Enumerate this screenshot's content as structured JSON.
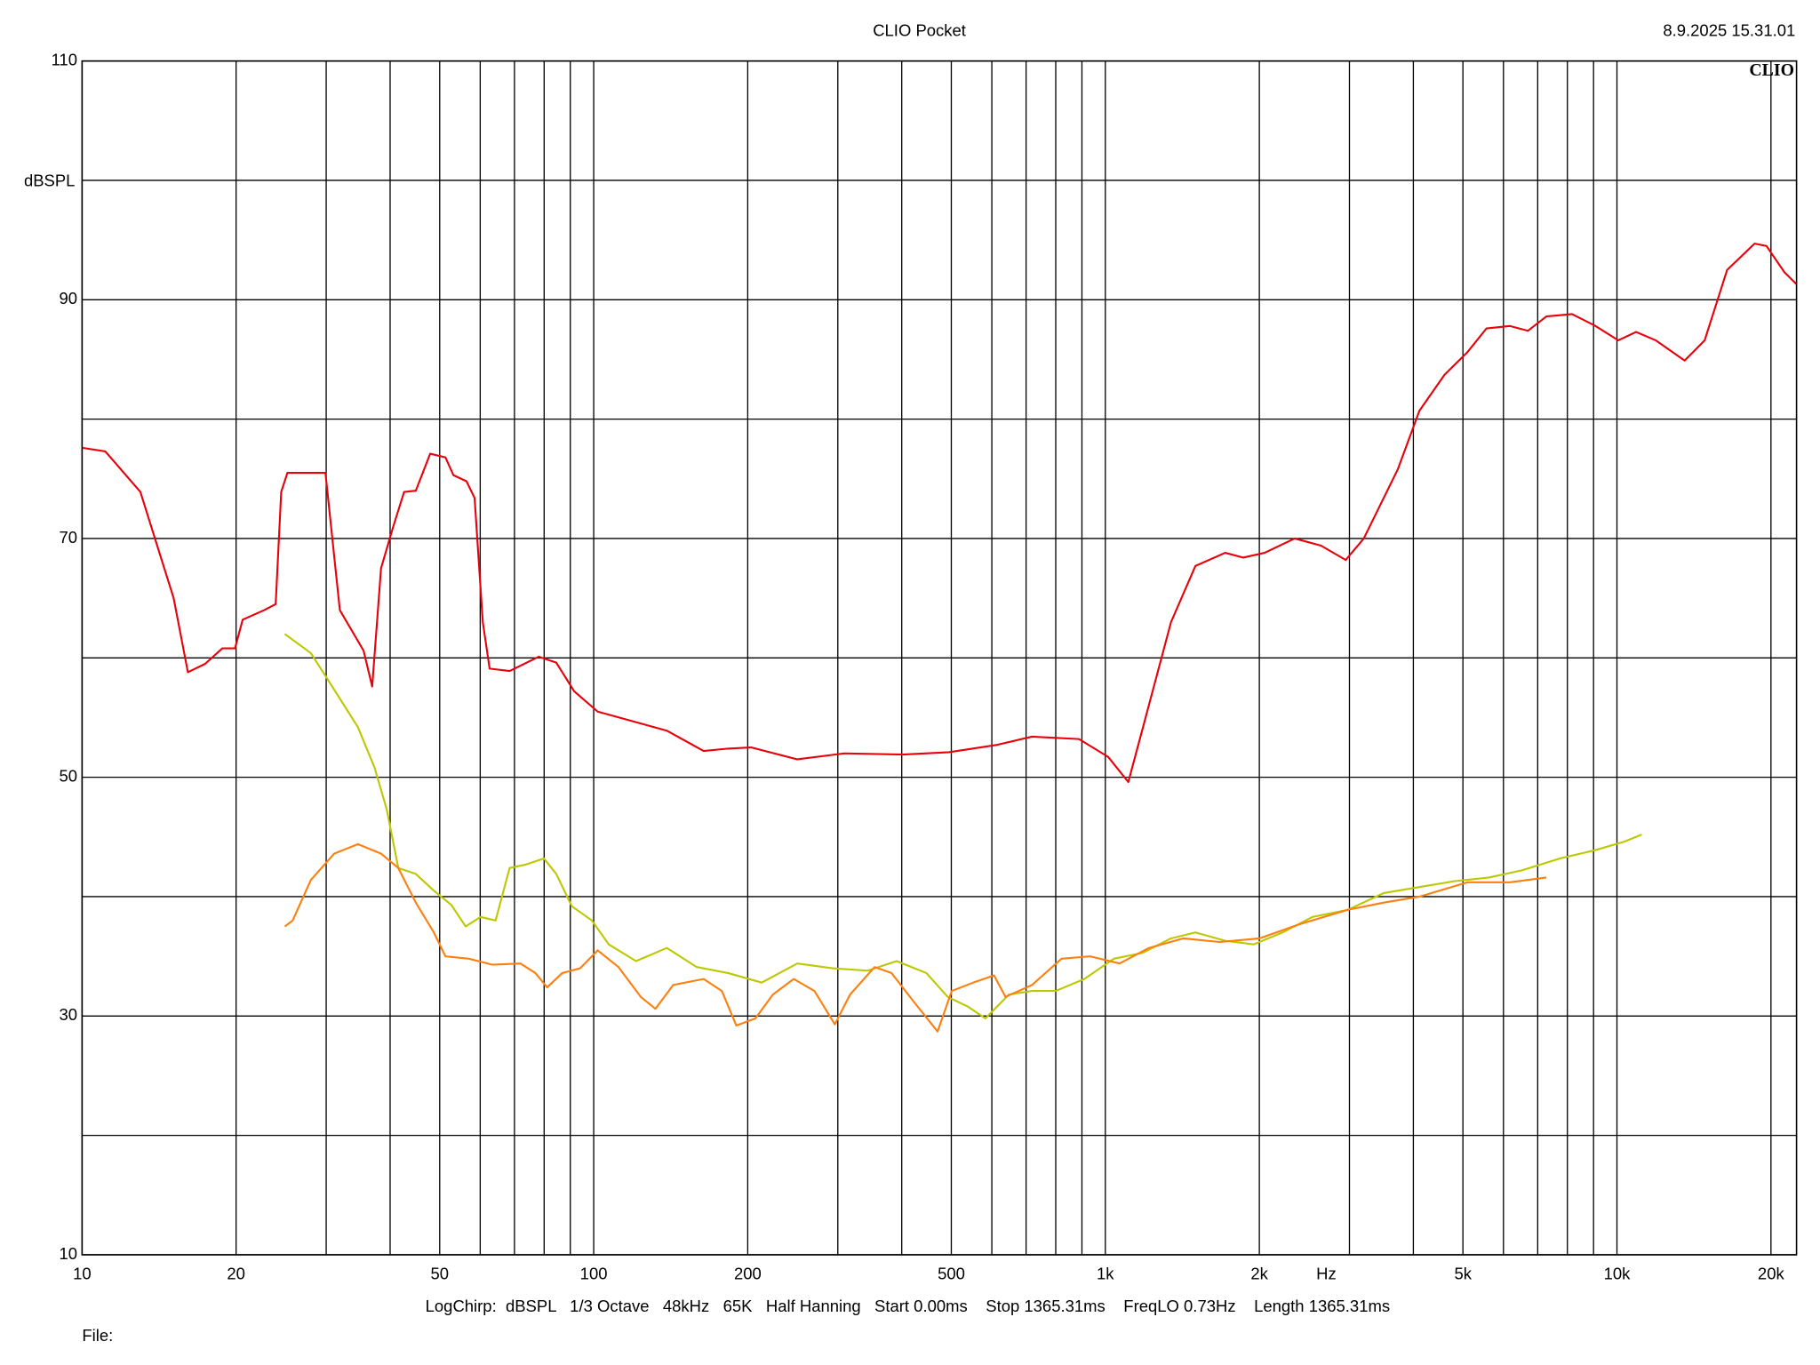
{
  "chart_data": {
    "type": "line",
    "title": "CLIO Pocket",
    "timestamp": "8.9.2025 15.31.01",
    "logo": "CLIO",
    "y_label": "dBSPL",
    "x_label": "Hz",
    "footer": "LogChirp:  dBSPL   1/3 Octave   48kHz   65K   Half Hanning   Start 0.00ms    Stop 1365.31ms    FreqLO 0.73Hz    Length 1365.31ms",
    "file_label": "File:",
    "x_log": true,
    "grid": true,
    "xlim": [
      10,
      22440
    ],
    "ylim": [
      10,
      110
    ],
    "xticks": [
      10,
      20,
      50,
      100,
      200,
      500,
      {
        "value": 1000,
        "label": "1k"
      },
      {
        "value": 2000,
        "label": "2k"
      },
      {
        "value": 5000,
        "label": "5k"
      },
      {
        "value": 10000,
        "label": "10k"
      },
      {
        "value": 20000,
        "label": "20k"
      }
    ],
    "x_minor_ticks": [
      30,
      40,
      60,
      70,
      80,
      90,
      300,
      400,
      600,
      700,
      800,
      900,
      3000,
      4000,
      6000,
      7000,
      8000,
      9000
    ],
    "yticks": [
      10,
      30,
      50,
      70,
      90,
      110
    ],
    "y_minor_ticks": [
      20,
      40,
      60,
      80,
      100
    ],
    "series": [
      {
        "color": "#e8000b",
        "x": [
          10,
          11.1,
          13.0,
          15.1,
          16.1,
          17.4,
          18.8,
          19.9,
          20.6,
          22.7,
          23.9,
          24.5,
          25.2,
          29.9,
          31.9,
          35.5,
          36.9,
          38.4,
          40.5,
          42.6,
          44.9,
          47.9,
          51.3,
          53.2,
          56.4,
          58.5,
          60.7,
          62.6,
          68.5,
          78.1,
          84.5,
          91.6,
          101.8,
          119,
          139,
          164,
          183,
          203,
          250,
          309,
          402,
          495,
          612,
          719,
          888,
          1013,
          1109,
          1185,
          1344,
          1500,
          1715,
          1860,
          2048,
          2345,
          2640,
          2950,
          3200,
          3730,
          4110,
          4600,
          5100,
          5560,
          6180,
          6700,
          7280,
          8170,
          9080,
          10060,
          10900,
          11910,
          13560,
          14840,
          16420,
          18580,
          19600,
          21250,
          22440
        ],
        "values": [
          77.6,
          77.3,
          73.9,
          65.0,
          58.8,
          59.5,
          60.8,
          60.8,
          63.2,
          64.0,
          64.5,
          73.9,
          75.5,
          75.5,
          64.0,
          60.6,
          57.6,
          67.5,
          70.9,
          73.9,
          74.0,
          77.1,
          76.8,
          75.3,
          74.8,
          73.4,
          63.0,
          59.1,
          58.9,
          60.1,
          59.6,
          57.2,
          55.5,
          54.7,
          53.9,
          52.2,
          52.4,
          52.5,
          51.5,
          52.0,
          51.9,
          52.1,
          52.7,
          53.4,
          53.2,
          51.7,
          49.6,
          54.2,
          63.0,
          67.7,
          68.8,
          68.4,
          68.8,
          70.0,
          69.4,
          68.2,
          70.0,
          75.8,
          80.7,
          83.7,
          85.6,
          87.6,
          87.8,
          87.4,
          88.6,
          88.8,
          87.8,
          86.6,
          87.3,
          86.6,
          84.9,
          86.6,
          92.5,
          94.7,
          94.5,
          92.3,
          91.3
        ]
      },
      {
        "color": "#bcc800",
        "x": [
          24.9,
          28.0,
          30.3,
          34.6,
          37.3,
          39.4,
          41.5,
          44.9,
          48.7,
          52.7,
          56.2,
          60.1,
          64.3,
          68.5,
          73.9,
          79.9,
          84.5,
          90.6,
          99.2,
          107,
          121,
          139,
          159,
          183,
          213,
          250,
          293,
          343,
          391,
          447,
          492,
          538,
          583,
          648,
          719,
          800,
          910,
          1039,
          1185,
          1344,
          1500,
          1715,
          1950,
          2220,
          2540,
          2980,
          3500,
          4110,
          4820,
          5620,
          6520,
          7740,
          9080,
          10330,
          11180
        ],
        "values": [
          62.0,
          60.4,
          58.1,
          54.2,
          50.8,
          47.3,
          42.4,
          41.9,
          40.5,
          39.3,
          37.5,
          38.3,
          38.0,
          42.4,
          42.7,
          43.2,
          41.9,
          39.2,
          38.0,
          36.0,
          34.6,
          35.7,
          34.1,
          33.6,
          32.8,
          34.4,
          34.0,
          33.8,
          34.6,
          33.6,
          31.6,
          30.8,
          29.8,
          31.8,
          32.1,
          32.1,
          33.1,
          34.8,
          35.3,
          36.5,
          37.0,
          36.3,
          36.0,
          37.0,
          38.3,
          38.9,
          40.3,
          40.8,
          41.3,
          41.6,
          42.2,
          43.2,
          43.9,
          44.6,
          45.2
        ]
      },
      {
        "color": "#ff7f0e",
        "x": [
          24.9,
          25.8,
          28.0,
          31.1,
          34.6,
          38.4,
          41.5,
          44.9,
          48.7,
          51.3,
          57.0,
          63.3,
          71.9,
          76.9,
          81.1,
          86.8,
          94.1,
          101.8,
          111.8,
          123.6,
          132,
          143,
          164,
          178,
          190,
          207,
          224,
          246,
          270,
          296,
          317,
          354,
          382,
          424,
          470,
          501,
          552,
          606,
          638,
          719,
          821,
          934,
          1066,
          1217,
          1419,
          1672,
          2000,
          2400,
          2980,
          3500,
          4110,
          5100,
          6180,
          7280
        ],
        "values": [
          37.5,
          38.0,
          41.4,
          43.6,
          44.4,
          43.6,
          42.4,
          39.5,
          37.0,
          35.0,
          34.8,
          34.3,
          34.4,
          33.6,
          32.4,
          33.6,
          34.0,
          35.5,
          34.1,
          31.6,
          30.6,
          32.6,
          33.1,
          32.1,
          29.2,
          29.8,
          31.8,
          33.1,
          32.1,
          29.3,
          31.8,
          34.1,
          33.6,
          31.1,
          28.7,
          32.1,
          32.8,
          33.4,
          31.6,
          32.6,
          34.8,
          35.0,
          34.4,
          35.7,
          36.5,
          36.2,
          36.5,
          37.7,
          38.9,
          39.5,
          40.0,
          41.2,
          41.2,
          41.6
        ]
      }
    ]
  }
}
